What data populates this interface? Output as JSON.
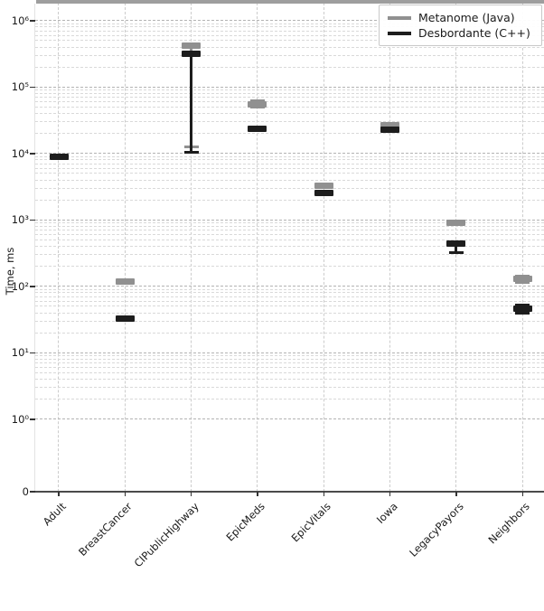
{
  "figure": {
    "ylabel": "Time, ms",
    "y_ticks": [
      {
        "label": "10⁶",
        "value": 1000000
      },
      {
        "label": "10⁵",
        "value": 100000
      },
      {
        "label": "10⁴",
        "value": 10000
      },
      {
        "label": "10³",
        "value": 1000
      },
      {
        "label": "10²",
        "value": 100
      },
      {
        "label": "10¹",
        "value": 10
      },
      {
        "label": "10⁰",
        "value": 1
      },
      {
        "label": "0",
        "value": 0
      }
    ],
    "legend": [
      {
        "label": "Metanome (Java)",
        "color": "#909090"
      },
      {
        "label": "Desbordante (C++)",
        "color": "#1d1d1d"
      }
    ]
  },
  "chart_data": {
    "type": "scatter",
    "marker_style": "thick horizontal bar with min-max whisker caps",
    "title": "",
    "xlabel": "",
    "ylabel": "Time, ms",
    "yscale": "symlog",
    "ylim": [
      0,
      1000000
    ],
    "grid": "both major and minor, dashed",
    "legend_position": "upper right",
    "categories": [
      "Adult",
      "BreastCancer",
      "CIPublicHighway",
      "EpicMeds",
      "EpicVitals",
      "Iowa",
      "LegacyPayors",
      "Neighbors"
    ],
    "series": [
      {
        "name": "Metanome (Java)",
        "color": "#909090",
        "values": [
          null,
          118,
          420000,
          56000,
          3300,
          27000,
          900,
          130
        ],
        "range_lo": [
          null,
          118,
          12700,
          50000,
          3300,
          27000,
          900,
          115
        ],
        "range_hi": [
          null,
          118,
          420000,
          63000,
          3300,
          27000,
          900,
          145
        ]
      },
      {
        "name": "Desbordante (C++)",
        "color": "#1d1d1d",
        "values": [
          9000,
          33,
          320000,
          24000,
          2550,
          23000,
          440,
          46
        ],
        "range_lo": [
          9000,
          33,
          10500,
          24000,
          2550,
          23000,
          320,
          40
        ],
        "range_hi": [
          9000,
          33,
          320000,
          24000,
          2550,
          23000,
          440,
          53
        ]
      }
    ]
  }
}
